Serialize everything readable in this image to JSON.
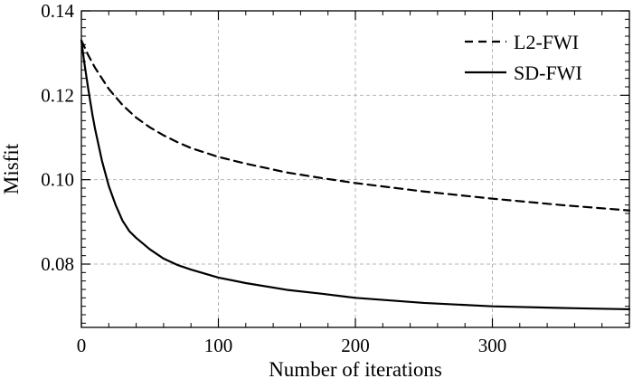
{
  "chart_data": {
    "type": "line",
    "title": "",
    "xlabel": "Number of iterations",
    "ylabel": "Misfit",
    "xlim": [
      0,
      400
    ],
    "ylim": [
      0.065,
      0.14
    ],
    "xticks": [
      0,
      100,
      200,
      300
    ],
    "xtick_labels": [
      "0",
      "100",
      "200",
      "300"
    ],
    "yticks": [
      0.08,
      0.1,
      0.12,
      0.14
    ],
    "ytick_labels": [
      "0.08",
      "0.10",
      "0.12",
      "0.14"
    ],
    "grid": true,
    "grid_style": "dashed",
    "legend_position": "top-right",
    "series": [
      {
        "name": "L2-FWI",
        "line_style": "dashed",
        "color": "#000000",
        "x": [
          0,
          5,
          10,
          20,
          30,
          40,
          50,
          60,
          70,
          80,
          100,
          120,
          150,
          175,
          200,
          250,
          300,
          350,
          400
        ],
        "y": [
          0.133,
          0.1295,
          0.1265,
          0.1215,
          0.1177,
          0.1147,
          0.1124,
          0.1105,
          0.1089,
          0.1075,
          0.1054,
          0.1038,
          0.1017,
          0.1004,
          0.0992,
          0.0972,
          0.0955,
          0.094,
          0.0927
        ]
      },
      {
        "name": "SD-FWI",
        "line_style": "solid",
        "color": "#000000",
        "x": [
          0,
          2,
          5,
          8,
          10,
          15,
          20,
          25,
          30,
          35,
          40,
          50,
          60,
          70,
          80,
          100,
          120,
          150,
          175,
          200,
          250,
          300,
          350,
          400
        ],
        "y": [
          0.133,
          0.128,
          0.1215,
          0.1155,
          0.112,
          0.1045,
          0.0985,
          0.094,
          0.0903,
          0.0878,
          0.0862,
          0.0835,
          0.0813,
          0.0798,
          0.0787,
          0.0768,
          0.0755,
          0.0739,
          0.073,
          0.072,
          0.0708,
          0.07,
          0.0696,
          0.0693
        ]
      }
    ]
  }
}
